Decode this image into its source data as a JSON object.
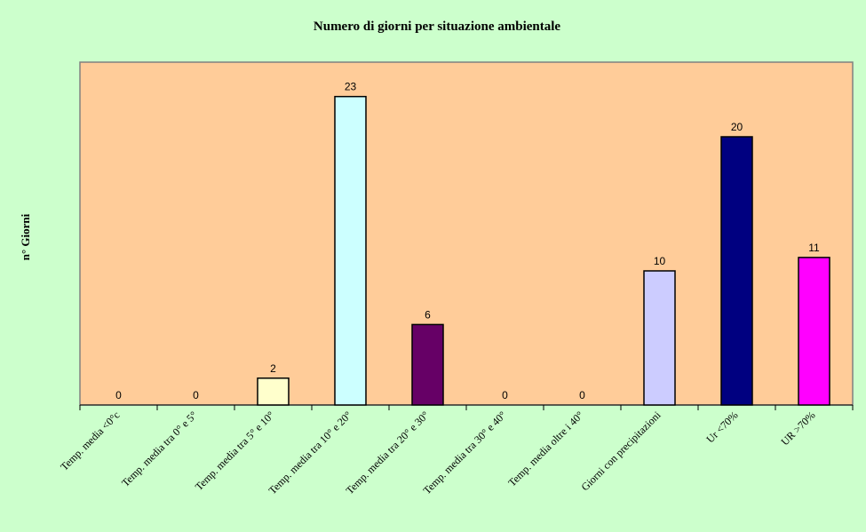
{
  "chart_data": {
    "type": "bar",
    "title": "Numero di giorni per situazione ambientale",
    "xlabel": "",
    "ylabel": "n° Giorni",
    "categories": [
      "Temp. media <0°c",
      "Temp. media tra 0° e 5°",
      "Temp. media tra 5° e 10°",
      "Temp. media tra 10° e 20°",
      "Temp. media tra 20° e 30°",
      "Temp. media tra 30° e 40°",
      "Temp. media oltre i 40°",
      "Giorni con precipitazioni",
      "Ur <70%",
      "UR >70%"
    ],
    "values": [
      0,
      0,
      2,
      23,
      6,
      0,
      0,
      10,
      20,
      11
    ],
    "bar_colors": [
      "#ffffcc",
      "#ccffff",
      "#ffffcc",
      "#ccffff",
      "#660066",
      "#ff8080",
      "#0066cc",
      "#ccccff",
      "#000080",
      "#ff00ff"
    ],
    "ylim": [
      0,
      25
    ],
    "grid": false,
    "legend": "none",
    "plot_background": "#ffcc99",
    "page_background": "#ccffcc"
  }
}
